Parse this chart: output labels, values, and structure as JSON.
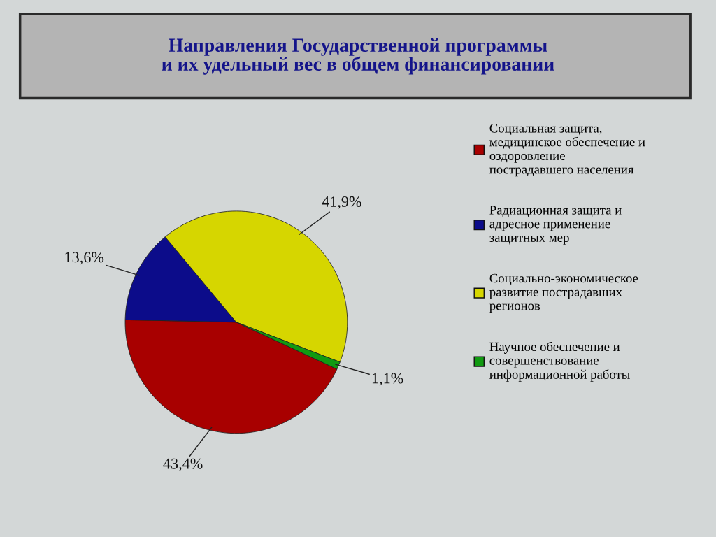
{
  "chart_data": {
    "type": "pie",
    "title": "Направления Государственной программы\nи их удельный вес в общем финансировании",
    "categories": [
      "Социальная защита,\nмедицинское обеспечение и\nоздоровление\nпострадавшего населения",
      "Радиационная защита и\nадресное применение\nзащитных мер",
      "Социально-экономическое\nразвитие пострадавших\nрегионов",
      "Научное обеспечение и\nсовершенствование\nинформационной работы"
    ],
    "values": [
      43.4,
      13.6,
      41.9,
      1.1
    ],
    "colors": [
      "#a80000",
      "#0c0c8a",
      "#d6d600",
      "#119a11"
    ],
    "value_labels": [
      "43,4%",
      "13,6%",
      "41,9%",
      "1,1%"
    ],
    "legend": "right"
  }
}
